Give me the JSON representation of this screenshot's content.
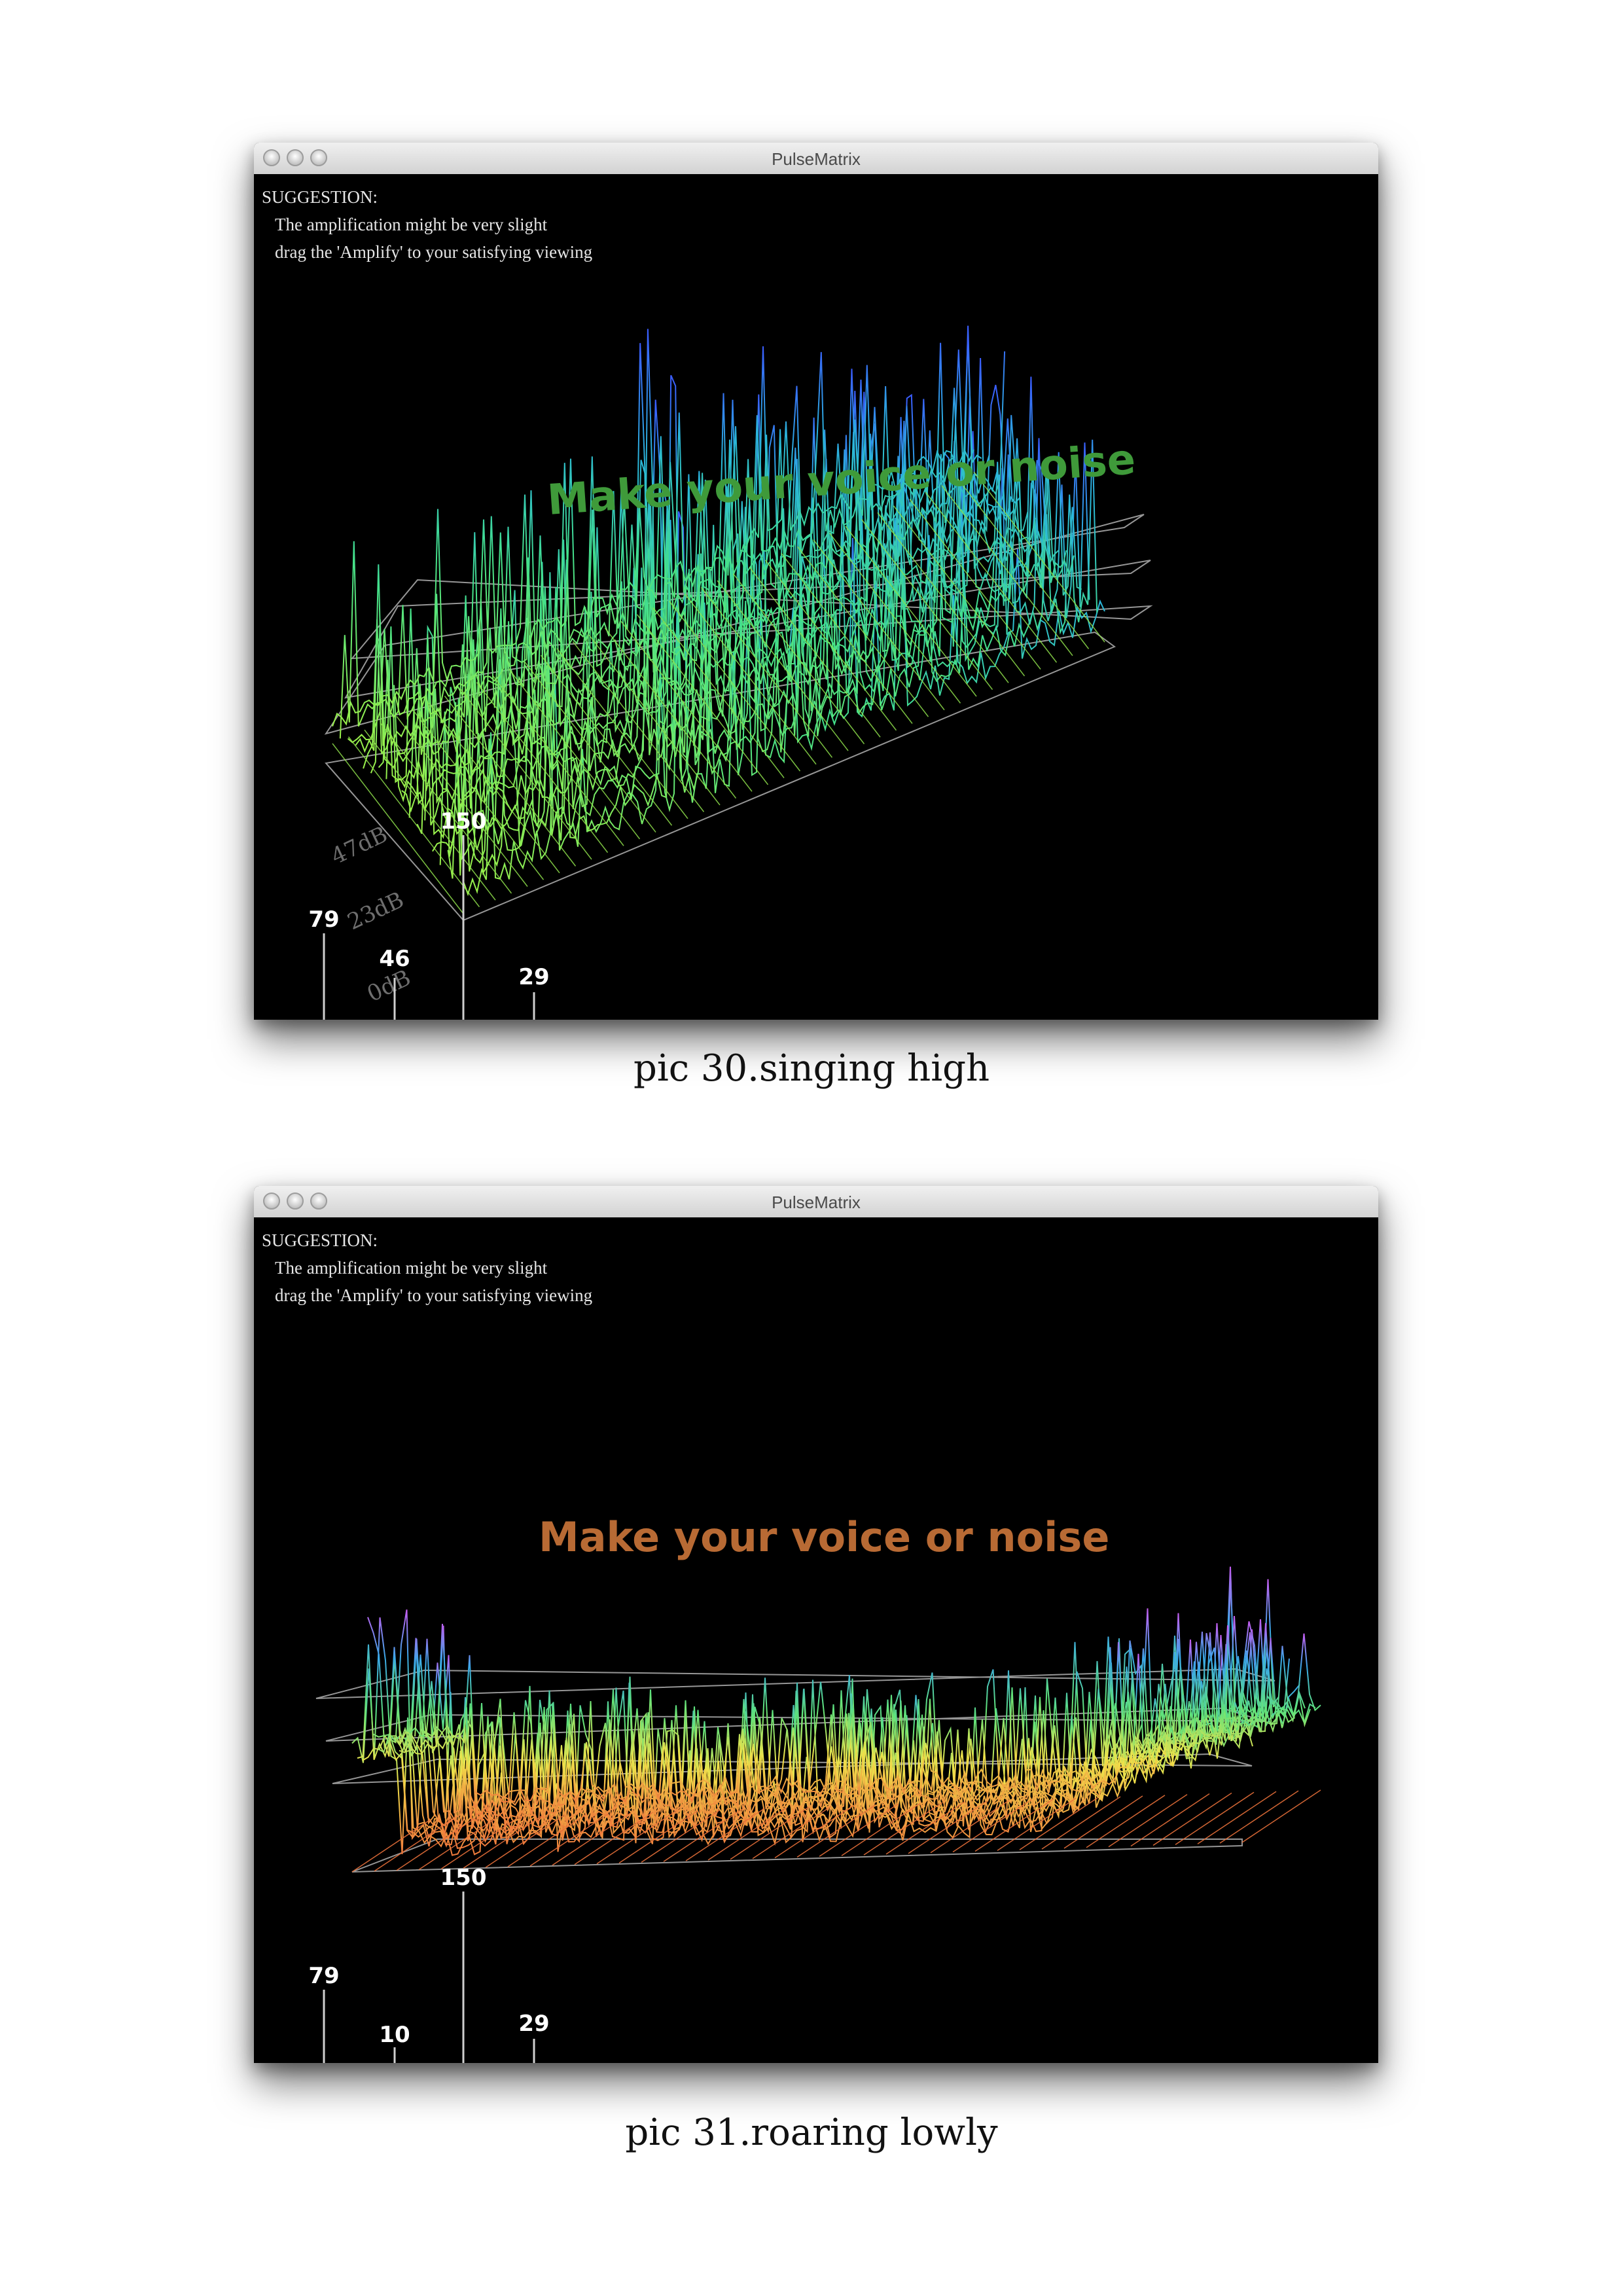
{
  "figures": [
    {
      "window_title": "PulseMatrix",
      "suggestion_heading": "SUGGESTION:",
      "suggestion_line1": "The amplification might be very slight",
      "suggestion_line2": "drag the 'Amplify' to your satisfying viewing",
      "banner_text": "Make your voice or noise",
      "banner_color": "#3f9a3a",
      "axis_labels": [
        "0dB",
        "23dB",
        "47dB"
      ],
      "markers": [
        "79",
        "46",
        "150",
        "29"
      ],
      "caption": "pic 30.singing high"
    },
    {
      "window_title": "PulseMatrix",
      "suggestion_heading": "SUGGESTION:",
      "suggestion_line1": "The amplification might be very slight",
      "suggestion_line2": "drag the 'Amplify' to your satisfying viewing",
      "banner_text": "Make your voice or noise",
      "banner_color": "#b86a34",
      "markers": [
        "79",
        "10",
        "150",
        "29"
      ],
      "caption": "pic 31.roaring lowly"
    }
  ],
  "icons": [
    "close-button",
    "minimize-button",
    "zoom-button"
  ]
}
